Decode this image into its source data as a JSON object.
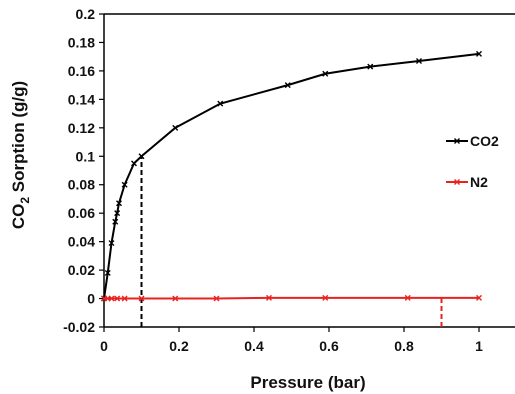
{
  "chart_data": {
    "type": "line",
    "title": "",
    "xlabel": "Pressure (bar)",
    "ylabel": {
      "prefix": "CO",
      "subscript": "2",
      "suffix": " Sorption (g/g)"
    },
    "xlim": [
      0,
      1
    ],
    "ylim": [
      -0.02,
      0.2
    ],
    "x_ticks": [
      "0",
      "0.2",
      "0.4",
      "0.6",
      "0.8",
      "1"
    ],
    "y_ticks": [
      "-0.02",
      "0",
      "0.02",
      "0.04",
      "0.06",
      "0.08",
      "0.1",
      "0.12",
      "0.14",
      "0.16",
      "0.18",
      "0.2"
    ],
    "x_tick_values": [
      0,
      0.2,
      0.4,
      0.6,
      0.8,
      1.0
    ],
    "y_tick_values": [
      -0.02,
      0,
      0.02,
      0.04,
      0.06,
      0.08,
      0.1,
      0.12,
      0.14,
      0.16,
      0.18,
      0.2
    ],
    "grid": false,
    "legend_position": "right",
    "series": [
      {
        "name": "CO2",
        "color": "#000000",
        "marker": "x",
        "x": [
          0.0,
          0.01,
          0.02,
          0.03,
          0.035,
          0.04,
          0.055,
          0.08,
          0.1,
          0.19,
          0.31,
          0.49,
          0.59,
          0.71,
          0.84,
          1.0
        ],
        "y": [
          0.0,
          0.018,
          0.039,
          0.054,
          0.06,
          0.067,
          0.08,
          0.095,
          0.1,
          0.12,
          0.137,
          0.15,
          0.158,
          0.163,
          0.167,
          0.172
        ]
      },
      {
        "name": "N2",
        "color": "#e8231f",
        "marker": "x",
        "x": [
          0.0,
          0.01,
          0.02,
          0.035,
          0.055,
          0.1,
          0.19,
          0.3,
          0.44,
          0.59,
          0.81,
          1.0
        ],
        "y": [
          0.0,
          0.0,
          0.0,
          0.0,
          0.0,
          0.0,
          0.0,
          0.0,
          0.0005,
          0.0005,
          0.0005,
          0.0005
        ]
      }
    ],
    "reference_lines": [
      {
        "x": 0.1,
        "y_from": -0.02,
        "y_to": 0.1,
        "color": "#000000"
      },
      {
        "x": 0.9,
        "y_from": -0.02,
        "y_to": 0.0,
        "color": "#e8231f"
      }
    ]
  }
}
